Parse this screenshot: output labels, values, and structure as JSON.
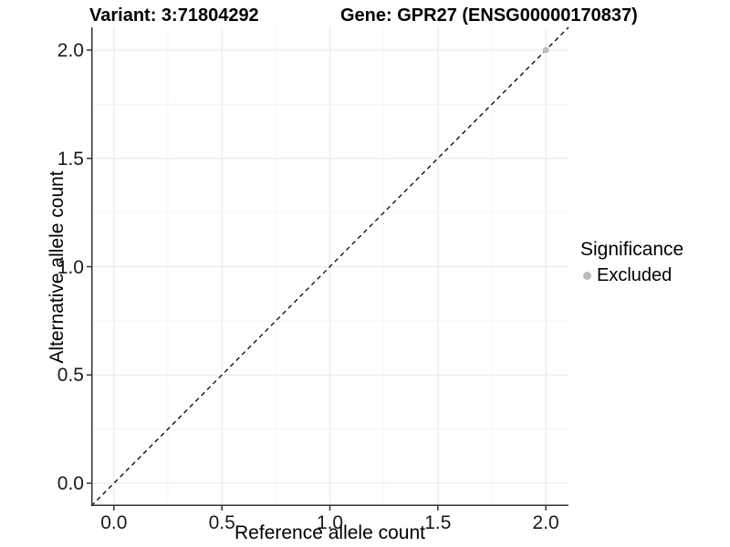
{
  "titles": {
    "variant": "Variant: 3:71804292",
    "gene": "Gene: GPR27 (ENSG00000170837)"
  },
  "chart_data": {
    "type": "scatter",
    "title": "Variant: 3:71804292  |  Gene: GPR27 (ENSG00000170837)",
    "xlabel": "Reference allele count",
    "ylabel": "Alternative allele count",
    "xlim": [
      -0.105,
      2.105
    ],
    "ylim": [
      -0.105,
      2.105
    ],
    "x_ticks": [
      0.0,
      0.5,
      1.0,
      1.5,
      2.0
    ],
    "y_ticks": [
      0.0,
      0.5,
      1.0,
      1.5,
      2.0
    ],
    "x_tick_labels": [
      "0.0",
      "0.5",
      "1.0",
      "1.5",
      "2.0"
    ],
    "y_tick_labels": [
      "0.0",
      "0.5",
      "1.0",
      "1.5",
      "2.0"
    ],
    "minor_ticks": [
      0.25,
      0.75,
      1.25,
      1.75
    ],
    "grid": true,
    "identity_line": {
      "style": "dashed",
      "from": [
        -0.105,
        -0.105
      ],
      "to": [
        2.105,
        2.105
      ]
    },
    "series": [
      {
        "name": "Excluded",
        "color": "#bcbcbc",
        "points": [
          [
            2.0,
            2.0
          ]
        ],
        "point_radius": 3.4
      }
    ],
    "legend": {
      "title": "Significance",
      "position": "right",
      "items": [
        {
          "label": "Excluded",
          "color": "#bcbcbc"
        }
      ]
    },
    "colors": {
      "axis_line": "#333333",
      "grid_major": "#ebebeb",
      "grid_minor": "#f5f5f5",
      "identity_line": "#000000",
      "tick_mark": "#333333",
      "panel_background": "#ffffff"
    }
  }
}
